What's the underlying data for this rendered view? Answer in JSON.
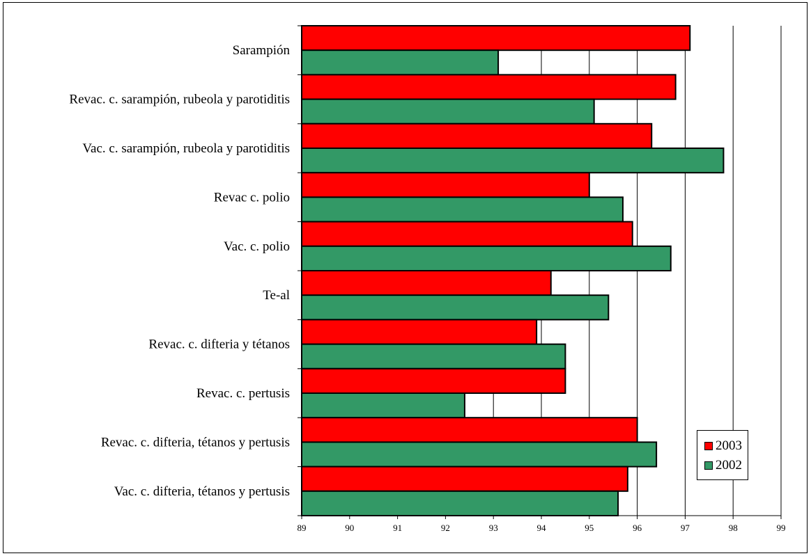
{
  "chart_data": {
    "type": "bar",
    "orientation": "horizontal",
    "categories": [
      "Sarampión",
      "Revac. c. sarampión, rubeola y parotiditis",
      "Vac. c. sarampión, rubeola y parotiditis",
      "Revac c. polio",
      "Vac. c. polio",
      "Te-al",
      "Revac. c. difteria y tétanos",
      "Revac. c. pertusis",
      "Revac. c. difteria, tétanos y pertusis",
      "Vac. c. difteria, tétanos y pertusis"
    ],
    "series": [
      {
        "name": "2003",
        "color": "#ff0000",
        "values": [
          97.1,
          96.8,
          96.3,
          95.0,
          95.9,
          94.2,
          93.9,
          94.5,
          96.0,
          95.8
        ]
      },
      {
        "name": "2002",
        "color": "#339966",
        "values": [
          93.1,
          95.1,
          97.8,
          95.7,
          96.7,
          95.4,
          94.5,
          92.4,
          96.4,
          95.6
        ]
      }
    ],
    "xlim": [
      89,
      99
    ],
    "xticks": [
      "89",
      "90",
      "91",
      "92",
      "93",
      "94",
      "95",
      "96",
      "97",
      "98",
      "99"
    ],
    "grid": "vertical",
    "legend_position": "bottom-right",
    "title": "",
    "xlabel": "",
    "ylabel": ""
  }
}
